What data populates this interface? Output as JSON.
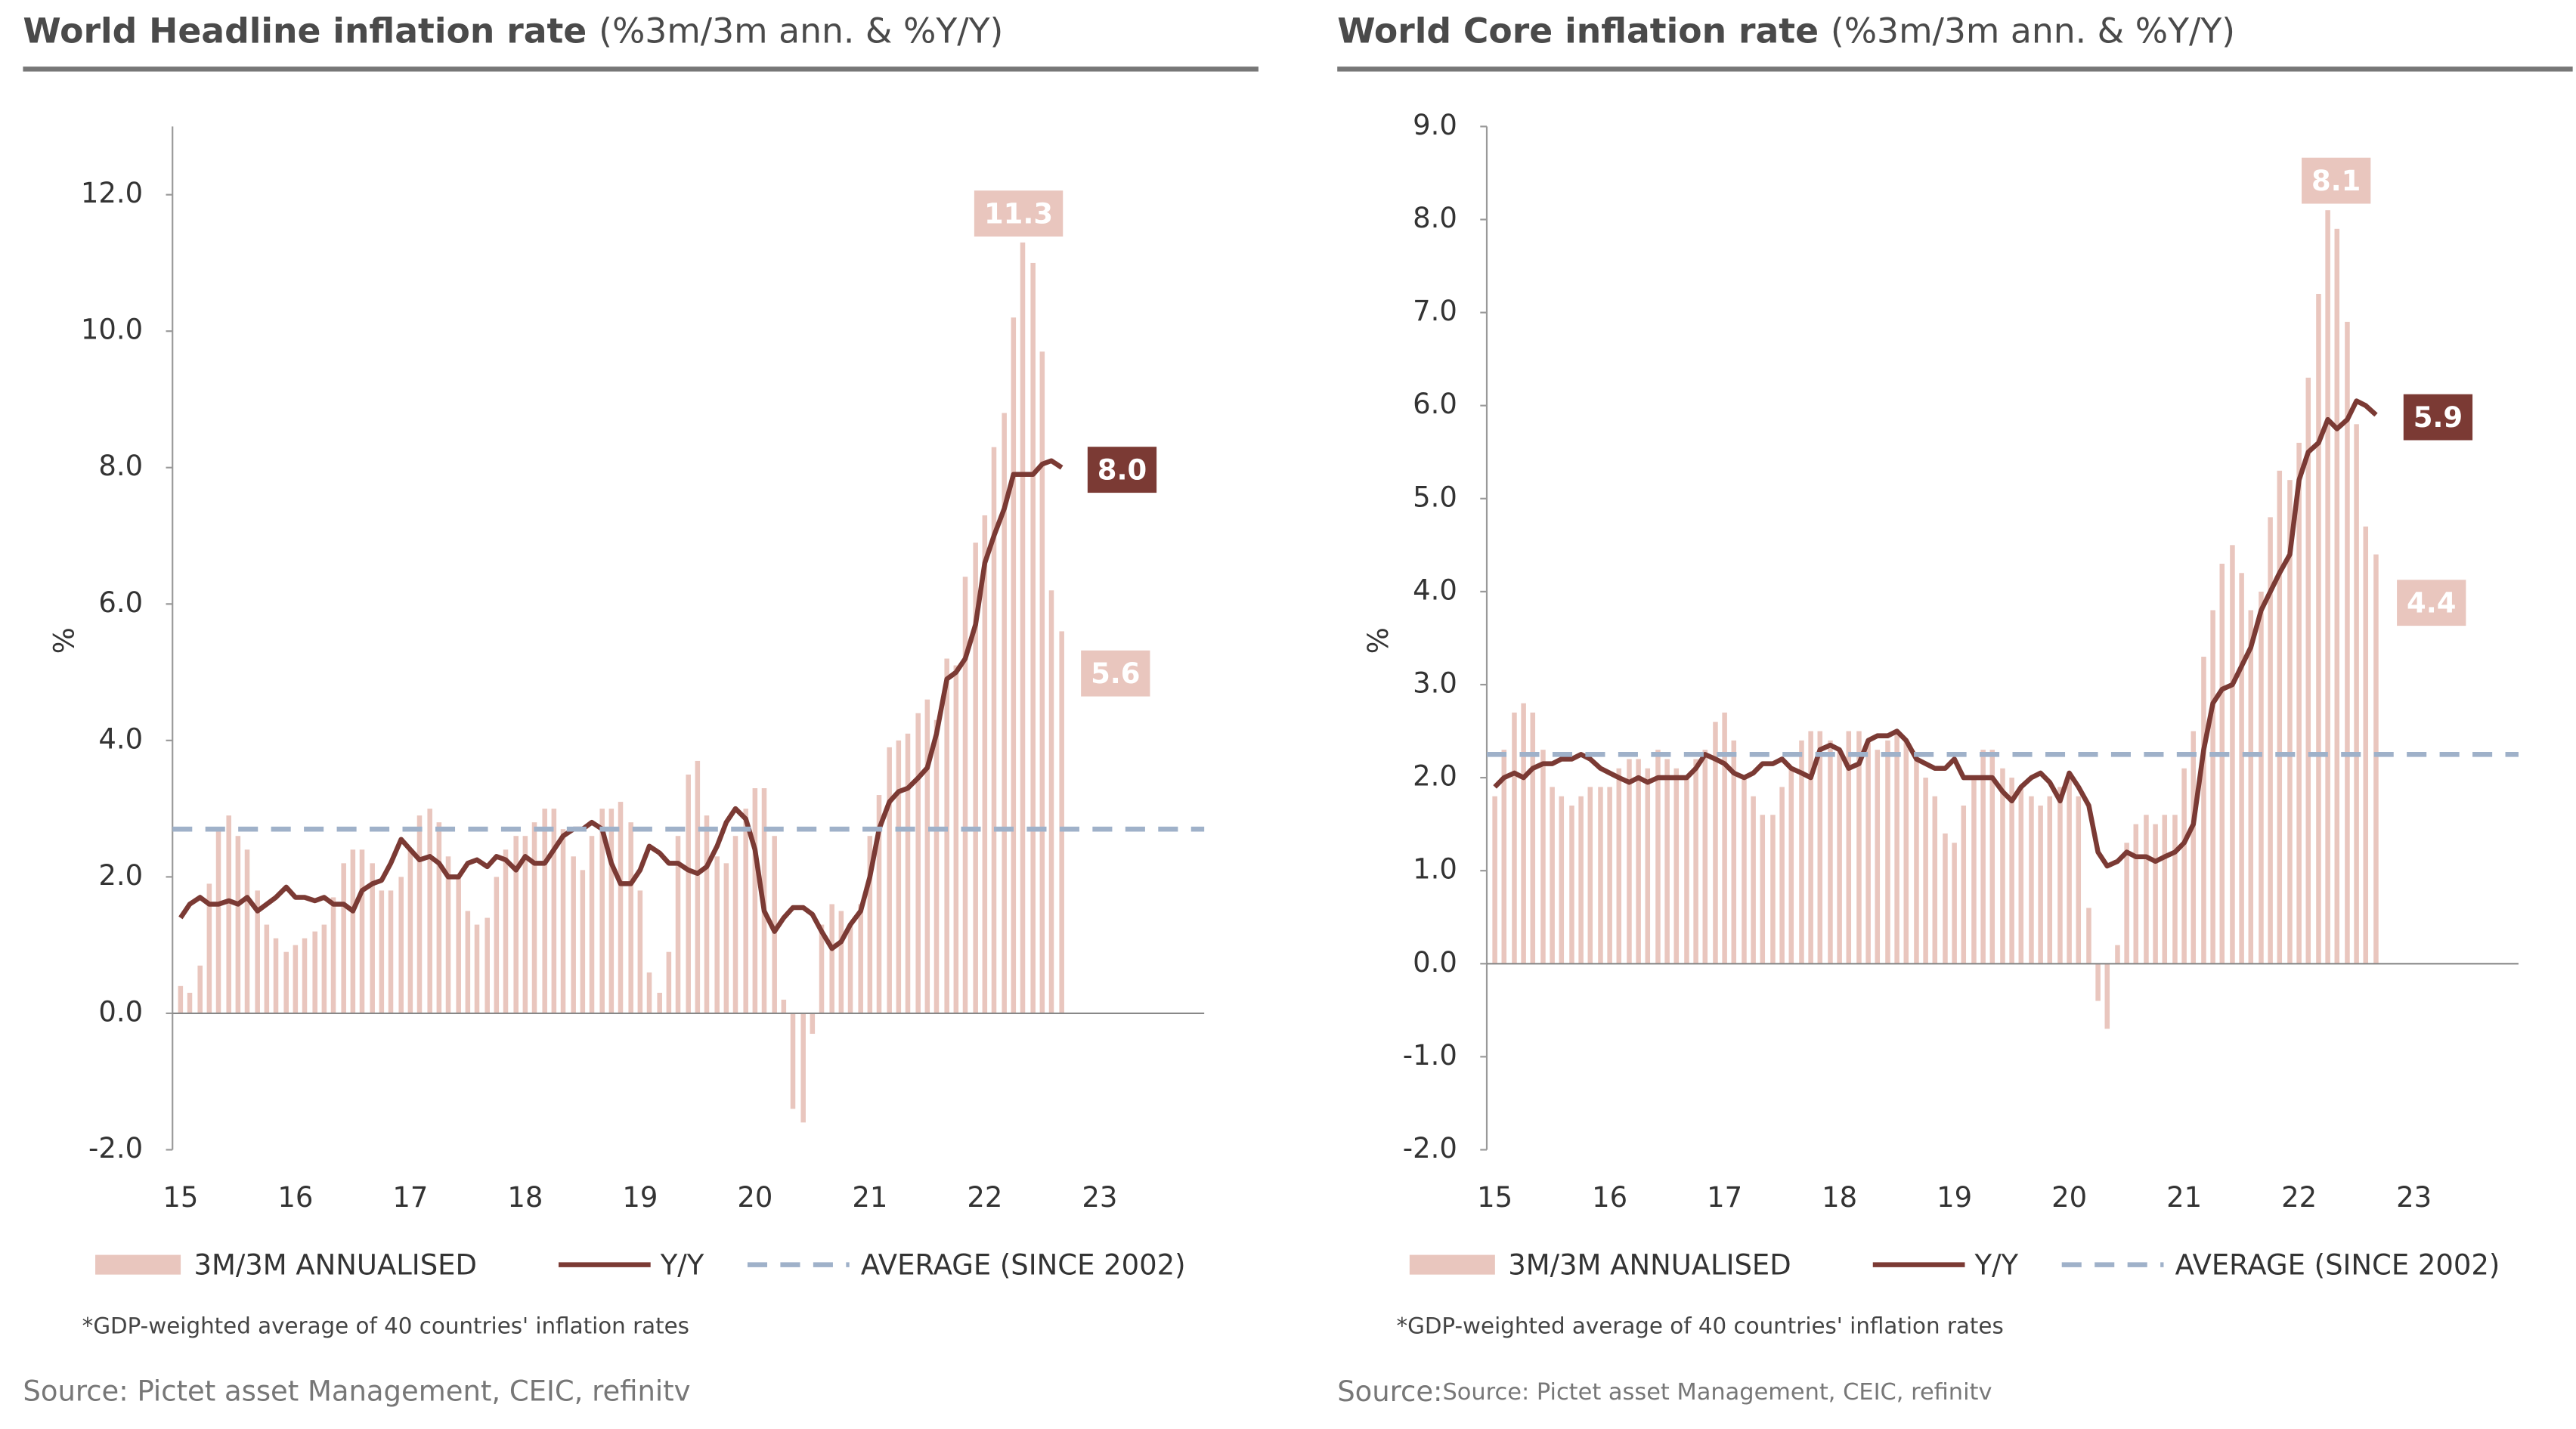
{
  "chart_data": [
    {
      "type": "bar_line",
      "title": "World Headline inflation rate",
      "subtitle": "(%3m/3m ann. & %Y/Y)",
      "ylabel": "%",
      "x": [
        15,
        15.08,
        15.17,
        15.25,
        15.33,
        15.42,
        15.5,
        15.58,
        15.67,
        15.75,
        15.83,
        15.92,
        16,
        16.08,
        16.17,
        16.25,
        16.33,
        16.42,
        16.5,
        16.58,
        16.67,
        16.75,
        16.83,
        16.92,
        17,
        17.08,
        17.17,
        17.25,
        17.33,
        17.42,
        17.5,
        17.58,
        17.67,
        17.75,
        17.83,
        17.92,
        18,
        18.08,
        18.17,
        18.25,
        18.33,
        18.42,
        18.5,
        18.58,
        18.67,
        18.75,
        18.83,
        18.92,
        19,
        19.08,
        19.17,
        19.25,
        19.33,
        19.42,
        19.5,
        19.58,
        19.67,
        19.75,
        19.83,
        19.92,
        20,
        20.08,
        20.17,
        20.25,
        20.33,
        20.42,
        20.5,
        20.58,
        20.67,
        20.75,
        20.83,
        20.92,
        21,
        21.08,
        21.17,
        21.25,
        21.33,
        21.42,
        21.5,
        21.58,
        21.67,
        21.75,
        21.83,
        21.92,
        22,
        22.08,
        22.17,
        22.25,
        22.33,
        22.42,
        22.5,
        22.58,
        22.67
      ],
      "series": [
        {
          "name": "3M/3M ANNUALISED",
          "kind": "bar",
          "color": "#e9c6be",
          "values": [
            0.4,
            0.3,
            0.7,
            1.9,
            2.7,
            2.9,
            2.6,
            2.4,
            1.8,
            1.3,
            1.1,
            0.9,
            1.0,
            1.1,
            1.2,
            1.3,
            1.7,
            2.2,
            2.4,
            2.4,
            2.2,
            1.8,
            1.8,
            2.0,
            2.4,
            2.9,
            3.0,
            2.8,
            2.3,
            2.0,
            1.5,
            1.3,
            1.4,
            2.0,
            2.4,
            2.6,
            2.6,
            2.8,
            3.0,
            3.0,
            2.7,
            2.3,
            2.1,
            2.6,
            3.0,
            3.0,
            3.1,
            2.8,
            1.8,
            0.6,
            0.3,
            0.9,
            2.6,
            3.5,
            3.7,
            2.9,
            2.3,
            2.2,
            2.6,
            3.0,
            3.3,
            3.3,
            2.6,
            0.2,
            -1.4,
            -1.6,
            -0.3,
            1.3,
            1.6,
            1.5,
            1.3,
            1.6,
            2.6,
            3.2,
            3.9,
            4.0,
            4.1,
            4.4,
            4.6,
            4.3,
            5.2,
            5.1,
            6.4,
            6.9,
            7.3,
            8.3,
            8.8,
            10.2,
            11.3,
            11.0,
            9.7,
            6.2,
            5.6
          ]
        },
        {
          "name": "Y/Y",
          "kind": "line",
          "color": "#7b3a34",
          "values": [
            1.4,
            1.6,
            1.7,
            1.6,
            1.6,
            1.65,
            1.6,
            1.7,
            1.5,
            1.6,
            1.7,
            1.85,
            1.7,
            1.7,
            1.65,
            1.7,
            1.6,
            1.6,
            1.5,
            1.8,
            1.9,
            1.95,
            2.2,
            2.55,
            2.4,
            2.25,
            2.3,
            2.2,
            2.0,
            2.0,
            2.2,
            2.25,
            2.15,
            2.3,
            2.25,
            2.1,
            2.3,
            2.2,
            2.2,
            2.4,
            2.6,
            2.7,
            2.7,
            2.8,
            2.7,
            2.2,
            1.9,
            1.9,
            2.1,
            2.45,
            2.35,
            2.2,
            2.2,
            2.1,
            2.05,
            2.15,
            2.45,
            2.8,
            3.0,
            2.85,
            2.4,
            1.5,
            1.2,
            1.4,
            1.55,
            1.55,
            1.45,
            1.2,
            0.95,
            1.05,
            1.3,
            1.5,
            2.0,
            2.7,
            3.1,
            3.25,
            3.3,
            3.45,
            3.6,
            4.1,
            4.9,
            5.0,
            5.2,
            5.7,
            6.6,
            7.0,
            7.4,
            7.9,
            7.9,
            7.9,
            8.05,
            8.1,
            8.0
          ]
        },
        {
          "name": "AVERAGE  (SINCE 2002)",
          "kind": "hline",
          "color": "#9fb1c9",
          "value": 2.7
        }
      ],
      "annotations": [
        {
          "text": "11.3",
          "color": "#e9c6be"
        },
        {
          "text": "8.0",
          "color": "#7b3a34"
        },
        {
          "text": "5.6",
          "color": "#e9c6be"
        }
      ],
      "xlim": [
        14.93,
        23.91
      ],
      "xticks": [
        15,
        16,
        17,
        18,
        19,
        20,
        21,
        22,
        23
      ],
      "ylim": [
        -2,
        13
      ],
      "yticks": [
        {
          "value": -2,
          "label": "-2.0"
        },
        {
          "value": 0,
          "label": "0.0"
        },
        {
          "value": 2,
          "label": "2.0"
        },
        {
          "value": 4,
          "label": "4.0"
        },
        {
          "value": 6,
          "label": "6.0"
        },
        {
          "value": 8,
          "label": "8.0"
        },
        {
          "value": 10,
          "label": "10.0"
        },
        {
          "value": 12,
          "label": "12.0"
        }
      ],
      "note": "*GDP-weighted  average of 40 countries' inflation rates",
      "source": "Source: Pictet asset Management, CEIC, refinitv"
    },
    {
      "type": "bar_line",
      "title": "World Core inflation rate",
      "subtitle": "(%3m/3m ann. & %Y/Y)",
      "ylabel": "%",
      "x": [
        15,
        15.08,
        15.17,
        15.25,
        15.33,
        15.42,
        15.5,
        15.58,
        15.67,
        15.75,
        15.83,
        15.92,
        16,
        16.08,
        16.17,
        16.25,
        16.33,
        16.42,
        16.5,
        16.58,
        16.67,
        16.75,
        16.83,
        16.92,
        17,
        17.08,
        17.17,
        17.25,
        17.33,
        17.42,
        17.5,
        17.58,
        17.67,
        17.75,
        17.83,
        17.92,
        18,
        18.08,
        18.17,
        18.25,
        18.33,
        18.42,
        18.5,
        18.58,
        18.67,
        18.75,
        18.83,
        18.92,
        19,
        19.08,
        19.17,
        19.25,
        19.33,
        19.42,
        19.5,
        19.58,
        19.67,
        19.75,
        19.83,
        19.92,
        20,
        20.08,
        20.17,
        20.25,
        20.33,
        20.42,
        20.5,
        20.58,
        20.67,
        20.75,
        20.83,
        20.92,
        21,
        21.08,
        21.17,
        21.25,
        21.33,
        21.42,
        21.5,
        21.58,
        21.67,
        21.75,
        21.83,
        21.92,
        22,
        22.08,
        22.17,
        22.25,
        22.33,
        22.42,
        22.5,
        22.58,
        22.67
      ],
      "series": [
        {
          "name": "3M/3M ANNUALISED",
          "kind": "bar",
          "color": "#e9c6be",
          "values": [
            1.8,
            2.3,
            2.7,
            2.8,
            2.7,
            2.3,
            1.9,
            1.8,
            1.7,
            1.8,
            1.9,
            1.9,
            1.9,
            2.1,
            2.2,
            2.2,
            2.1,
            2.3,
            2.2,
            2.1,
            2.0,
            2.2,
            2.3,
            2.6,
            2.7,
            2.4,
            2.0,
            1.8,
            1.6,
            1.6,
            1.9,
            2.1,
            2.4,
            2.5,
            2.5,
            2.4,
            2.3,
            2.5,
            2.5,
            2.4,
            2.3,
            2.4,
            2.5,
            2.4,
            2.2,
            2.0,
            1.8,
            1.4,
            1.3,
            1.7,
            2.0,
            2.3,
            2.3,
            2.1,
            2.0,
            1.9,
            1.8,
            1.7,
            1.8,
            1.9,
            2.0,
            1.8,
            0.6,
            -0.4,
            -0.7,
            0.2,
            1.3,
            1.5,
            1.6,
            1.5,
            1.6,
            1.6,
            2.1,
            2.5,
            3.3,
            3.8,
            4.3,
            4.5,
            4.2,
            3.8,
            4.0,
            4.8,
            5.3,
            5.2,
            5.6,
            6.3,
            7.2,
            8.1,
            7.9,
            6.9,
            5.8,
            4.7,
            4.4
          ]
        },
        {
          "name": "Y/Y",
          "kind": "line",
          "color": "#7b3a34",
          "values": [
            1.9,
            2.0,
            2.05,
            2.0,
            2.1,
            2.15,
            2.15,
            2.2,
            2.2,
            2.25,
            2.2,
            2.1,
            2.05,
            2.0,
            1.95,
            2.0,
            1.95,
            2.0,
            2.0,
            2.0,
            2.0,
            2.1,
            2.25,
            2.2,
            2.15,
            2.05,
            2.0,
            2.05,
            2.15,
            2.15,
            2.2,
            2.1,
            2.05,
            2.0,
            2.3,
            2.35,
            2.3,
            2.1,
            2.15,
            2.4,
            2.45,
            2.45,
            2.5,
            2.4,
            2.2,
            2.15,
            2.1,
            2.1,
            2.2,
            2.0,
            2.0,
            2.0,
            2.0,
            1.85,
            1.75,
            1.9,
            2.0,
            2.05,
            1.95,
            1.75,
            2.05,
            1.9,
            1.7,
            1.2,
            1.05,
            1.1,
            1.2,
            1.15,
            1.15,
            1.1,
            1.15,
            1.2,
            1.3,
            1.5,
            2.3,
            2.8,
            2.95,
            3.0,
            3.2,
            3.4,
            3.8,
            4.0,
            4.2,
            4.4,
            5.2,
            5.5,
            5.6,
            5.85,
            5.75,
            5.85,
            6.05,
            6.0,
            5.9
          ]
        },
        {
          "name": "AVERAGE  (SINCE 2002)",
          "kind": "hline",
          "color": "#9fb1c9",
          "value": 2.25
        }
      ],
      "annotations": [
        {
          "text": "8.1",
          "color": "#e9c6be"
        },
        {
          "text": "5.9",
          "color": "#7b3a34"
        },
        {
          "text": "4.4",
          "color": "#e9c6be"
        }
      ],
      "xlim": [
        14.93,
        23.91
      ],
      "xticks": [
        15,
        16,
        17,
        18,
        19,
        20,
        21,
        22,
        23
      ],
      "ylim": [
        -2,
        9
      ],
      "yticks": [
        {
          "value": -2,
          "label": "-2.0"
        },
        {
          "value": -1,
          "label": "-1.0"
        },
        {
          "value": 0,
          "label": "0.0"
        },
        {
          "value": 1,
          "label": "1.0"
        },
        {
          "value": 2,
          "label": "2.0"
        },
        {
          "value": 3,
          "label": "3.0"
        },
        {
          "value": 4,
          "label": "4.0"
        },
        {
          "value": 5,
          "label": "5.0"
        },
        {
          "value": 6,
          "label": "6.0"
        },
        {
          "value": 7,
          "label": "7.0"
        },
        {
          "value": 8,
          "label": "8.0"
        },
        {
          "value": 9,
          "label": "9.0"
        }
      ],
      "note": "*GDP-weighted  average of 40 countries' inflation rates",
      "source_label": "Source:",
      "source": "Source: Pictet asset Management, CEIC, refinitv"
    }
  ]
}
